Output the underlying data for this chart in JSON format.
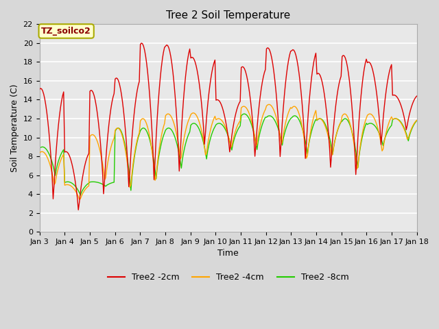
{
  "title": "Tree 2 Soil Temperature",
  "xlabel": "Time",
  "ylabel": "Soil Temperature (C)",
  "annotation": "TZ_soilco2",
  "annotation_color": "#8B0000",
  "annotation_bg": "#FFFFCC",
  "annotation_edge": "#AAAA00",
  "ylim": [
    0,
    22
  ],
  "xlim": [
    0,
    15
  ],
  "fig_bg": "#D8D8D8",
  "plot_bg": "#E8E8E8",
  "grid_color": "#FFFFFF",
  "series": {
    "Tree2 -2cm": {
      "color": "#DD0000",
      "lw": 1.0
    },
    "Tree2 -4cm": {
      "color": "#FFA500",
      "lw": 1.0
    },
    "Tree2 -8cm": {
      "color": "#22CC00",
      "lw": 1.0
    }
  },
  "xtick_labels": [
    "Jan 3",
    "Jan 4",
    "Jan 5",
    "Jan 6",
    "Jan 7",
    "Jan 8",
    "Jan 9",
    "Jan 10",
    "Jan 11",
    "Jan 12",
    "Jan 13",
    "Jan 14",
    "Jan 15",
    "Jan 16",
    "Jan 17",
    "Jan 18"
  ],
  "ytick_labels": [
    0,
    2,
    4,
    6,
    8,
    10,
    12,
    14,
    16,
    18,
    20,
    22
  ],
  "num_days": 15,
  "pts_per_day": 24,
  "day_peaks_2cm": [
    15.2,
    8.5,
    15.0,
    16.3,
    20.0,
    19.8,
    18.5,
    14.0,
    17.5,
    19.5,
    19.3,
    16.8,
    18.7,
    18.0,
    14.5
  ],
  "day_mins_2cm": [
    2.5,
    1.8,
    3.1,
    3.8,
    4.3,
    5.3,
    8.5,
    8.0,
    7.2,
    7.0,
    6.8,
    6.0,
    5.0,
    8.5,
    10.5
  ],
  "day_peaks_4cm": [
    8.5,
    5.0,
    10.3,
    11.0,
    12.0,
    12.5,
    12.6,
    12.0,
    13.3,
    13.5,
    13.3,
    12.0,
    12.5,
    12.5,
    12.0
  ],
  "day_mins_4cm": [
    4.5,
    3.2,
    4.8,
    3.8,
    4.5,
    7.0,
    7.5,
    8.5,
    8.5,
    8.7,
    7.0,
    7.5,
    5.8,
    8.0,
    9.5
  ],
  "day_peaks_8cm": [
    9.0,
    5.3,
    5.3,
    11.0,
    11.0,
    11.0,
    11.5,
    11.5,
    12.5,
    12.3,
    12.3,
    12.0,
    12.0,
    11.5,
    12.0
  ],
  "day_mins_8cm": [
    5.8,
    3.8,
    4.8,
    4.0,
    5.3,
    6.5,
    7.5,
    8.5,
    8.5,
    9.0,
    8.0,
    8.0,
    6.5,
    9.0,
    9.5
  ],
  "peak_phase": 0.55,
  "title_fontsize": 11,
  "tick_fontsize": 8,
  "label_fontsize": 9,
  "legend_fontsize": 9
}
